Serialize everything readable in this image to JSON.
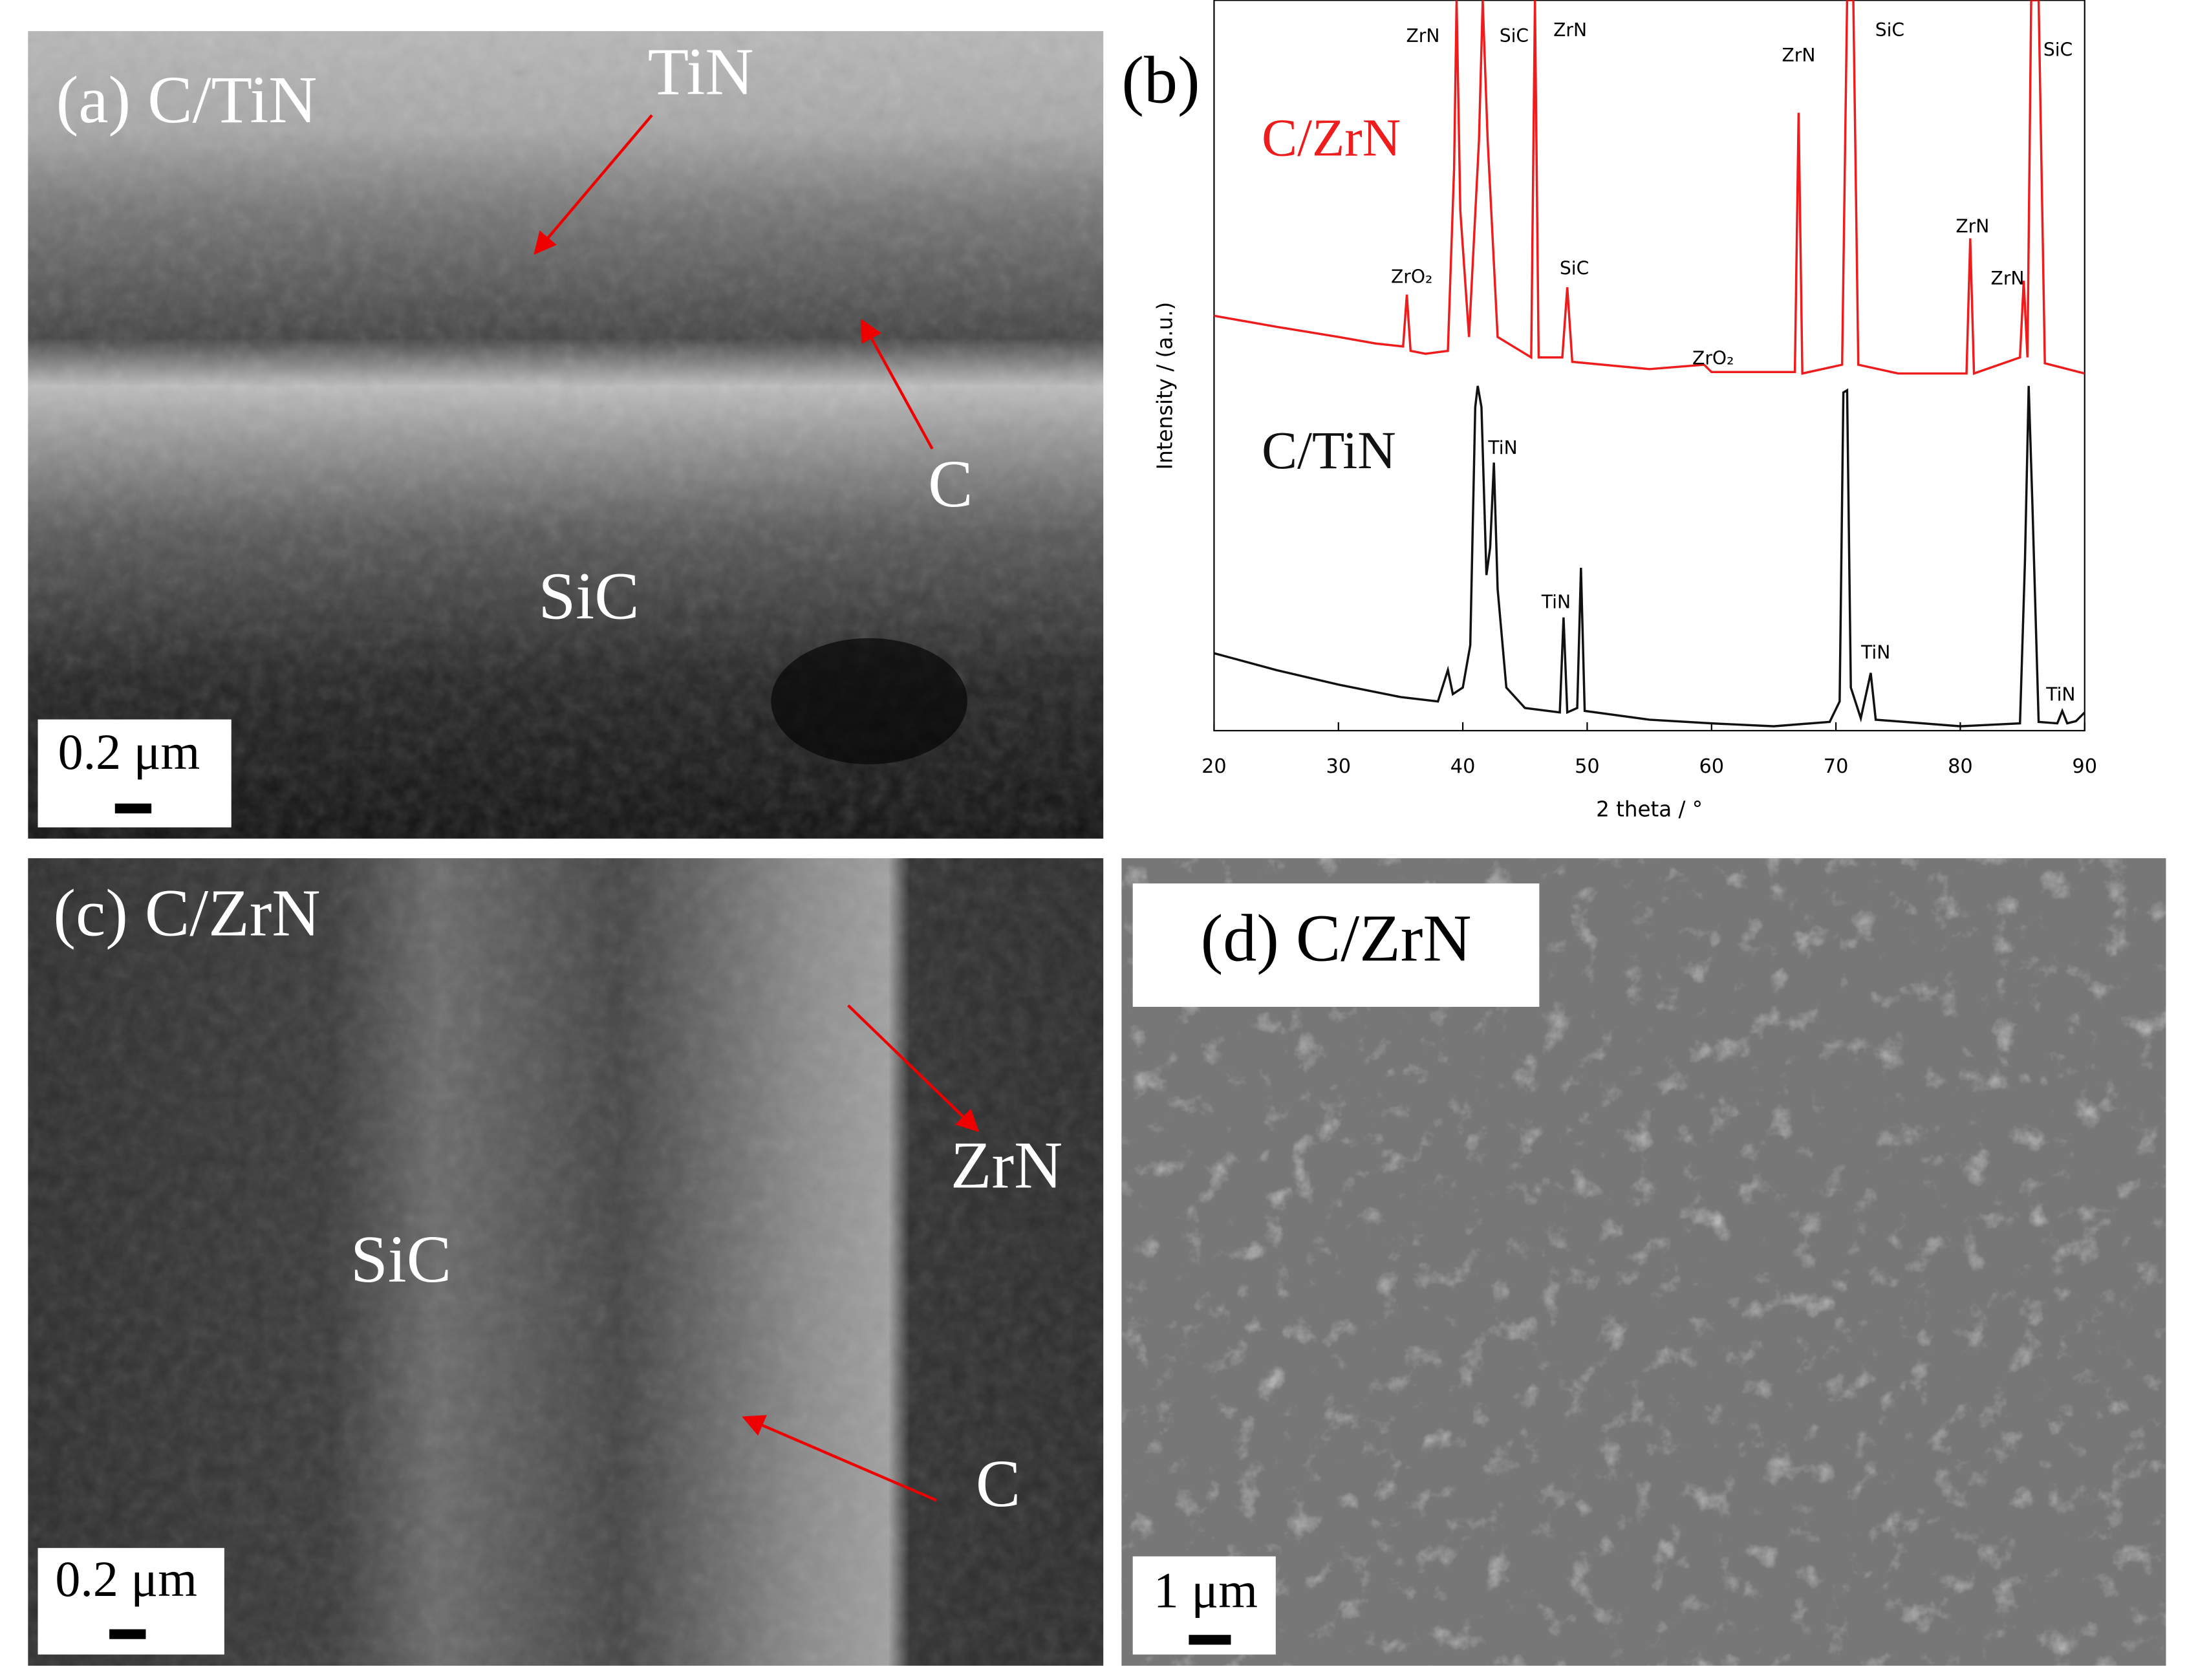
{
  "panels": {
    "a": {
      "label": "(a) C/TiN",
      "annotations": [
        "TiN",
        "C",
        "SiC"
      ],
      "scale_bar": "0.2 μm"
    },
    "c": {
      "label": "(c) C/ZrN",
      "annotations": [
        "ZrN",
        "SiC",
        "C"
      ],
      "scale_bar": "0.2 μm"
    },
    "d": {
      "label": "(d) C/ZrN",
      "scale_bar": "1 μm"
    }
  },
  "chart_data": {
    "type": "line",
    "panel_label": "(b)",
    "x_label": "2 theta / °",
    "y_label": "Intensity / (a.u.)",
    "xlim": [
      20,
      90
    ],
    "xticks": [
      20,
      30,
      40,
      50,
      60,
      70,
      80,
      90
    ],
    "ylim": [
      0,
      100
    ],
    "series": [
      {
        "name": "C/ZrN",
        "color": "#ee1c1c",
        "x": [
          20,
          25,
          30,
          33,
          35.2,
          35.5,
          35.8,
          37,
          38.8,
          39.3,
          39.5,
          39.8,
          40.5,
          41.3,
          41.6,
          42,
          42.8,
          45.5,
          45.8,
          46.1,
          48,
          48.4,
          48.8,
          55,
          59.4,
          60,
          66.7,
          67,
          67.3,
          70.5,
          70.9,
          71.4,
          71.8,
          75,
          80.5,
          80.8,
          81.1,
          84.8,
          85.1,
          85.4,
          85.7,
          86.3,
          86.8,
          90
        ],
        "values": [
          56.8,
          55.3,
          53.9,
          53.0,
          52.6,
          59.7,
          52.0,
          51.6,
          52.0,
          77.0,
          100,
          71.2,
          53.9,
          80.8,
          100,
          80.8,
          53.9,
          51.1,
          100,
          51.1,
          51.1,
          60.7,
          50.5,
          49.5,
          50.1,
          49.1,
          49.1,
          84.6,
          48.9,
          50.1,
          100,
          100,
          50.1,
          48.9,
          48.9,
          67.4,
          48.9,
          51.1,
          61.6,
          51.1,
          100,
          100,
          50.3,
          48.9
        ]
      },
      {
        "name": "C/TiN",
        "color": "#111111",
        "x": [
          20,
          25,
          30,
          35,
          38,
          38.8,
          39.2,
          40,
          40.6,
          41,
          41.2,
          41.5,
          41.9,
          42.2,
          42.5,
          42.8,
          43.5,
          45,
          47.8,
          48.1,
          48.4,
          49.2,
          49.5,
          49.8,
          55,
          60,
          65,
          69.5,
          70.3,
          70.6,
          70.9,
          71.2,
          72,
          72.8,
          73.2,
          80,
          84.8,
          85.2,
          85.5,
          85.8,
          86.3,
          87.8,
          88.2,
          88.6,
          89.3,
          90
        ],
        "values": [
          10.6,
          8.3,
          6.3,
          4.6,
          4.0,
          8.3,
          5.0,
          5.9,
          11.7,
          44.3,
          47.2,
          44.3,
          21.3,
          25.1,
          36.7,
          19.4,
          5.9,
          3.1,
          2.5,
          15.5,
          2.5,
          3.1,
          22.3,
          2.7,
          1.5,
          1.0,
          0.6,
          1.2,
          4.0,
          46.3,
          46.6,
          5.9,
          1.7,
          7.9,
          1.5,
          0.6,
          1.0,
          23.2,
          47.2,
          30.9,
          1.2,
          1.0,
          2.7,
          1.0,
          1.3,
          2.5
        ]
      }
    ],
    "annotations": [
      "ZrN",
      "SiC",
      "ZrN",
      "ZrN",
      "SiC",
      "SiC",
      "ZrO₂",
      "SiC",
      "ZrO₂",
      "ZrN",
      "ZrN",
      "TiN",
      "TiN",
      "TiN",
      "TiN"
    ]
  }
}
